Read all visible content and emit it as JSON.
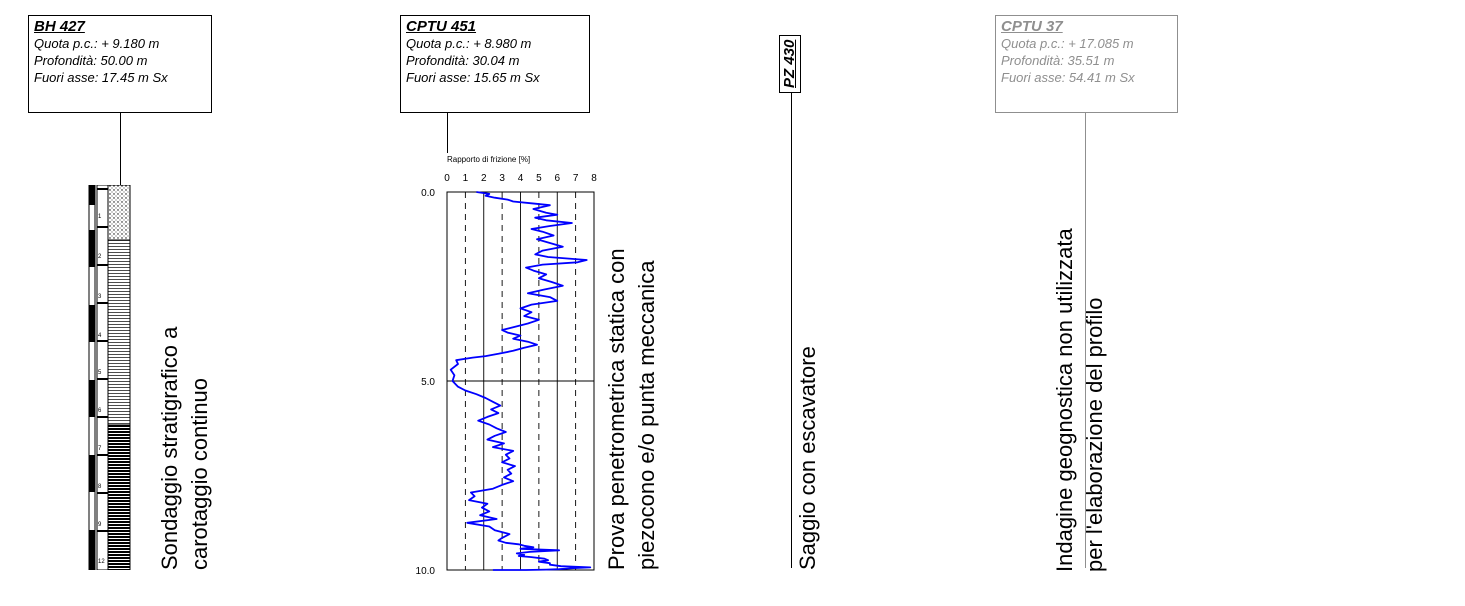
{
  "bh427": {
    "title": "BH 427",
    "quota": "Quota p.c.: + 9.180 m",
    "profondita": "Profondità: 50.00 m",
    "fuori_asse": "Fuori asse: 17.45 m Sx",
    "sample_numbers": [
      "1",
      "2",
      "3",
      "4",
      "5",
      "6",
      "7",
      "8",
      "9",
      "12"
    ],
    "caption_line1": "Sondaggio stratigrafico a",
    "caption_line2": "carotaggio continuo"
  },
  "cptu451": {
    "title": "CPTU 451",
    "quota": "Quota p.c.: + 8.980 m",
    "profondita": "Profondità: 30.04 m",
    "fuori_asse": "Fuori asse: 15.65 m Sx",
    "caption_line1": "Prova penetrometrica statica con",
    "caption_line2": "piezocono e/o punta meccanica"
  },
  "pz430": {
    "title": "PZ 430",
    "caption": "Saggio con escavatore"
  },
  "cptu37": {
    "title": "CPTU 37",
    "quota": "Quota p.c.: + 17.085 m",
    "profondita": "Profondità: 35.51 m",
    "fuori_asse": "Fuori asse: 54.41 m Sx",
    "caption_line1": "Indagine geognostica non utilizzata",
    "caption_line2": "per l'elaborazione del profilo"
  },
  "colors": {
    "line": "#0000ff",
    "gray": "#8f8f8f"
  },
  "chart_data": {
    "type": "line",
    "title": "Rapporto di frizione [%]",
    "xlabel": "Rapporto di frizione [%]",
    "ylabel": "",
    "xlim": [
      0,
      8
    ],
    "ylim": [
      0,
      10
    ],
    "y_inverted": true,
    "x_ticks": [
      "0",
      "1",
      "2",
      "3",
      "4",
      "5",
      "6",
      "7",
      "8"
    ],
    "y_ticks": [
      "0.0",
      "5.0",
      "10.0"
    ],
    "series": [
      {
        "x": [
          1.6,
          2.3,
          2.1,
          2.6,
          3.3,
          3.6,
          4.6,
          5.6,
          4.7,
          5.4,
          6.0,
          4.8,
          5.4,
          6.8,
          5.6,
          4.6,
          5.2,
          5.8,
          4.9,
          5.6,
          6.3,
          5.2,
          4.8,
          5.5,
          7.6,
          7.1,
          5.2,
          4.3,
          4.7,
          5.4,
          5.0,
          5.7,
          6.3,
          5.3,
          4.4,
          5.6,
          6.0,
          4.6,
          4.0,
          4.6,
          4.2,
          5.0,
          4.4,
          3.6,
          3.0,
          3.3,
          4.0,
          3.6,
          4.4,
          4.9,
          4.2,
          3.6,
          2.8,
          2.1,
          1.4,
          0.5,
          0.6,
          0.2,
          0.4,
          0.3,
          0.6,
          1.0,
          1.6,
          2.1,
          2.5,
          2.9,
          2.4,
          2.8,
          2.2,
          1.7,
          2.3,
          2.7,
          3.2,
          2.6,
          2.2,
          3.1,
          2.5,
          3.6,
          3.2,
          3.4,
          3.0,
          3.7,
          3.3,
          3.5,
          3.1,
          3.6,
          3.0,
          2.5,
          1.3,
          1.5,
          1.2,
          2.2,
          1.9,
          2.3,
          1.8,
          2.7,
          1.1,
          2.3,
          2.6,
          3.4,
          3.0,
          2.8,
          3.2,
          3.9,
          4.2,
          4.7,
          4.0,
          6.1,
          4.5,
          3.8,
          4.2,
          3.9,
          4.6,
          5.3,
          5.5,
          5.0,
          5.6,
          5.6,
          6.2,
          7.8,
          6.9,
          6.3,
          6.1,
          5.4,
          4.3,
          3.1,
          2.5
        ],
        "y": [
          0.0,
          0.05,
          0.1,
          0.15,
          0.2,
          0.25,
          0.3,
          0.35,
          0.45,
          0.55,
          0.6,
          0.68,
          0.75,
          0.82,
          0.9,
          0.98,
          1.05,
          1.15,
          1.25,
          1.35,
          1.45,
          1.55,
          1.65,
          1.72,
          1.8,
          1.86,
          1.92,
          2.0,
          2.08,
          2.18,
          2.28,
          2.38,
          2.48,
          2.58,
          2.68,
          2.78,
          2.88,
          2.98,
          3.08,
          3.18,
          3.28,
          3.38,
          3.48,
          3.58,
          3.65,
          3.72,
          3.8,
          3.88,
          3.96,
          4.04,
          4.12,
          4.2,
          4.28,
          4.34,
          4.38,
          4.45,
          4.55,
          4.7,
          4.85,
          5.0,
          5.15,
          5.25,
          5.35,
          5.45,
          5.55,
          5.65,
          5.75,
          5.85,
          5.95,
          6.05,
          6.15,
          6.25,
          6.35,
          6.45,
          6.55,
          6.65,
          6.75,
          6.85,
          6.95,
          7.05,
          7.15,
          7.25,
          7.35,
          7.45,
          7.55,
          7.65,
          7.75,
          7.85,
          7.95,
          8.05,
          8.15,
          8.25,
          8.35,
          8.45,
          8.55,
          8.65,
          8.75,
          8.85,
          8.95,
          9.05,
          9.15,
          9.22,
          9.28,
          9.32,
          9.36,
          9.4,
          9.44,
          9.48,
          9.52,
          9.56,
          9.6,
          9.63,
          9.66,
          9.7,
          9.74,
          9.78,
          9.82,
          9.86,
          9.9,
          9.93,
          9.95,
          9.97,
          9.98,
          9.99,
          10.0,
          10.0,
          10.0
        ]
      }
    ],
    "grid": true
  }
}
